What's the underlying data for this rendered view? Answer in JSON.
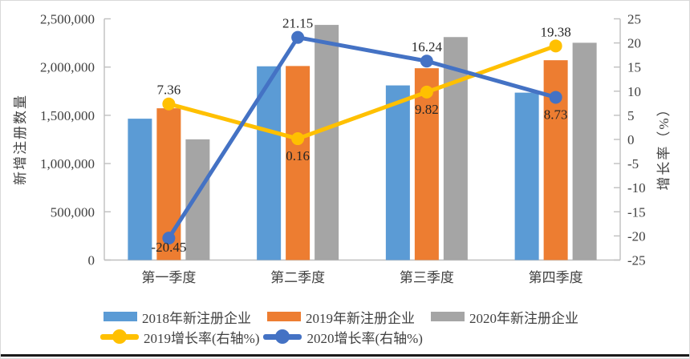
{
  "frame": {
    "background": "#ffffff",
    "border_color": "#d9d9d9",
    "bottom_rule_color": "#1a1a1a",
    "axis_line_color": "#BFBFBF"
  },
  "chart_data": {
    "type": "combo bar+line (dual axis)",
    "categories": [
      "第一季度",
      "第二季度",
      "第三季度",
      "第四季度"
    ],
    "bar_series": [
      {
        "name": "2018年新注册企业",
        "color": "#5B9BD5",
        "values": [
          1465000,
          2008000,
          1810000,
          1735000
        ]
      },
      {
        "name": "2019年新注册企业",
        "color": "#ED7D31",
        "values": [
          1573000,
          2011000,
          1988000,
          2071000
        ]
      },
      {
        "name": "2020年新注册企业",
        "color": "#A5A5A5",
        "values": [
          1251000,
          2437000,
          2311000,
          2252000
        ]
      }
    ],
    "line_series": [
      {
        "name": "2019增长率(右轴%)",
        "color": "#FFC000",
        "axis": "right",
        "values": [
          7.36,
          0.16,
          9.82,
          19.38
        ],
        "label_side": [
          "above",
          "below",
          "below",
          "above"
        ]
      },
      {
        "name": "2020增长率(右轴%)",
        "color": "#4472C4",
        "axis": "right",
        "values": [
          -20.45,
          21.15,
          16.24,
          8.73
        ],
        "label_side": [
          "below",
          "above",
          "above",
          "below"
        ]
      }
    ],
    "left_axis": {
      "title": "新增注册数量",
      "min": 0,
      "max": 2500000,
      "step": 500000,
      "tick_labels": [
        "0",
        "500,000",
        "1,000,000",
        "1,500,000",
        "2,000,000",
        "2,500,000"
      ]
    },
    "right_axis": {
      "title": "增长率（%）",
      "min": -25,
      "max": 25,
      "step": 5,
      "tick_labels": [
        "-25",
        "-20",
        "-15",
        "-10",
        "-5",
        "0",
        "5",
        "10",
        "15",
        "20",
        "25"
      ]
    },
    "legend": {
      "position": "bottom",
      "rows": 2
    },
    "grid": "off",
    "text_color": "#404040"
  }
}
